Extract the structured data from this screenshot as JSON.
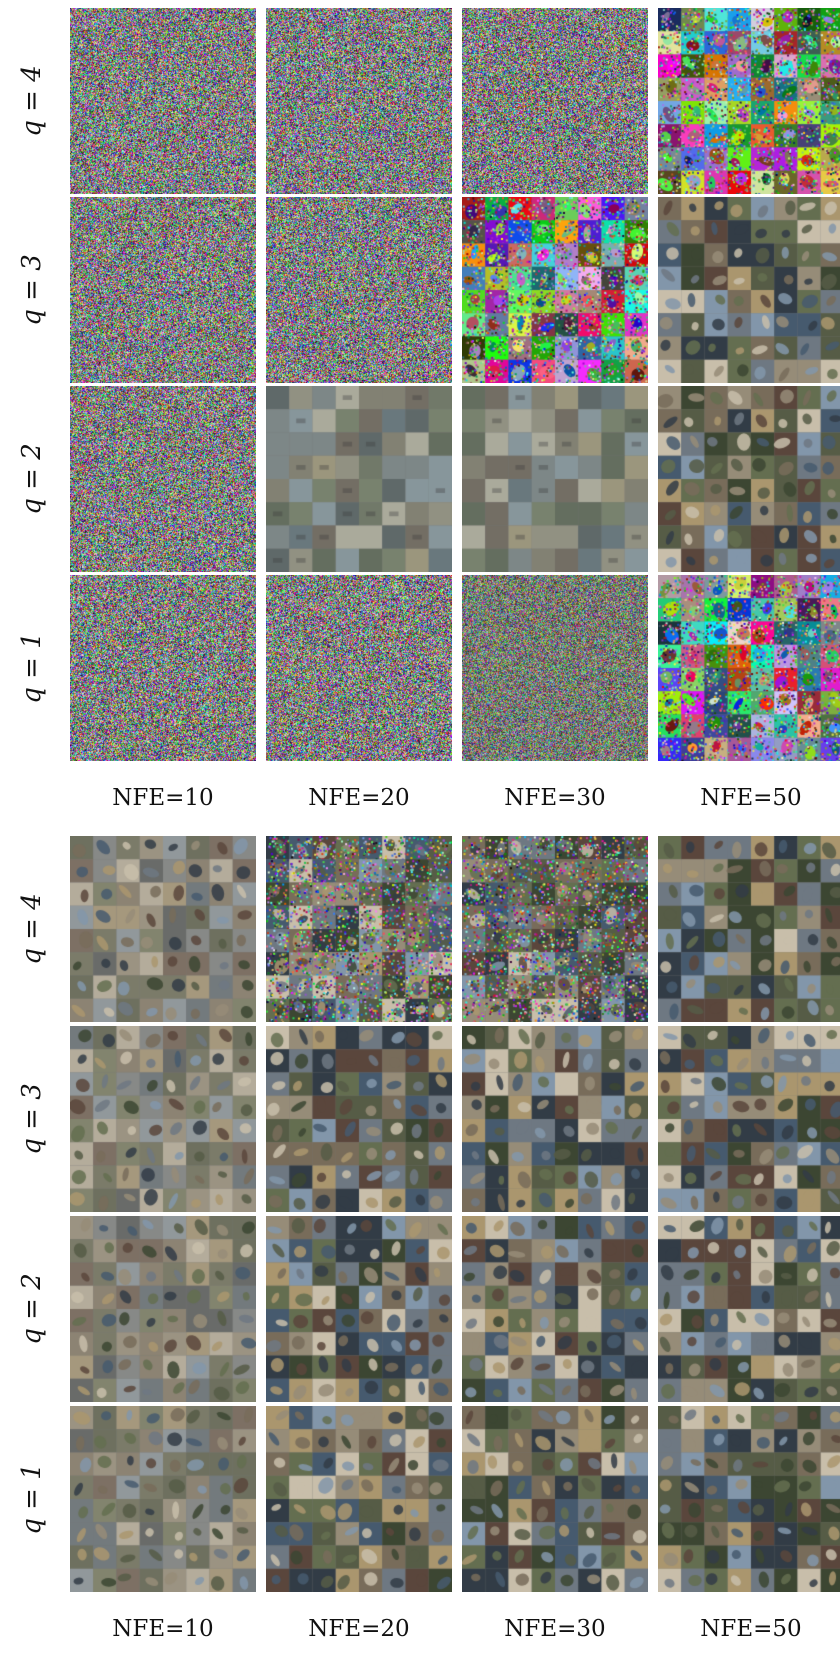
{
  "figure": {
    "panels": [
      {
        "id": "top",
        "rows": [
          {
            "label": "q = 4",
            "cells": [
              "noise",
              "noise",
              "noise",
              "chaotic"
            ]
          },
          {
            "label": "q = 3",
            "cells": [
              "noise",
              "noise",
              "chaotic",
              "images"
            ]
          },
          {
            "label": "q = 2",
            "cells": [
              "noise",
              "blurry",
              "blurry",
              "images"
            ]
          },
          {
            "label": "q = 1",
            "cells": [
              "noise",
              "noise",
              "partial-noise",
              "chaotic"
            ]
          }
        ],
        "columns": [
          "NFE=10",
          "NFE=20",
          "NFE=30",
          "NFE=50"
        ]
      },
      {
        "id": "bottom",
        "rows": [
          {
            "label": "q = 4",
            "cells": [
              "faded",
              "noisy-images",
              "noisy-images",
              "images"
            ]
          },
          {
            "label": "q = 3",
            "cells": [
              "faded",
              "images",
              "images",
              "images"
            ]
          },
          {
            "label": "q = 2",
            "cells": [
              "faded",
              "images",
              "images",
              "images"
            ]
          },
          {
            "label": "q = 1",
            "cells": [
              "faded",
              "images",
              "images",
              "images"
            ]
          }
        ],
        "columns": [
          "NFE=10",
          "NFE=20",
          "NFE=30",
          "NFE=50"
        ]
      }
    ]
  }
}
